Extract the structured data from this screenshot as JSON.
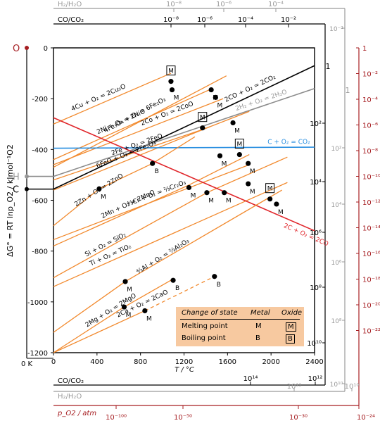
{
  "chart_data": {
    "type": "line",
    "xlabel": "T / °C",
    "ylabel": "ΔG° = RT lnp_O2 / kJmol⁻¹O2",
    "xlim": [
      0,
      2400
    ],
    "ylim": [
      -1200,
      0
    ],
    "x_ticks": [
      0,
      400,
      800,
      1200,
      1600,
      2000,
      2400
    ],
    "y_ticks": [
      0,
      -200,
      -400,
      -600,
      -800,
      -1000,
      -1200
    ],
    "x_zero_label": "0 K",
    "left_scale_labels": {
      "O": "O",
      "H": "H",
      "C": "C"
    },
    "left_scale_y": {
      "O": 0,
      "H": -506,
      "C": -556
    },
    "top_h2_label": "H₂/H₂O",
    "top_h2_ticks": [
      "10⁻⁸",
      "10⁻⁶",
      "10⁻⁴"
    ],
    "top_co_label": "CO/CO₂",
    "top_co_ticks": [
      "10⁻⁸",
      "10⁻⁶",
      "10⁻⁴",
      "10⁻²"
    ],
    "bottom_co_label": "CO/CO₂",
    "bottom_co_ticks": [
      "10¹⁴",
      "10¹²"
    ],
    "bottom_h2_label": "H₂/H₂O",
    "bottom_h2_ticks": [
      "10¹²",
      "10¹⁰"
    ],
    "bottom_po2_label": "p_O2 / atm",
    "bottom_po2_ticks": [
      "10⁻¹⁰⁰",
      "10⁻⁵⁰",
      "10⁻³⁰",
      "10⁻²⁴"
    ],
    "right_h2_ticks": [
      "10⁻²",
      "10²",
      "10⁴",
      "10⁶",
      "10⁸",
      "10¹⁰"
    ],
    "right_co_ticks": [
      "10²",
      "10⁴",
      "10⁶",
      "10⁸",
      "10¹⁰"
    ],
    "right_po2_ticks": [
      "1",
      "10⁻²",
      "10⁻⁴",
      "10⁻⁶",
      "10⁻⁸",
      "10⁻¹⁰",
      "10⁻¹²",
      "10⁻¹⁴",
      "10⁻¹⁶",
      "10⁻¹⁸",
      "10⁻²⁰",
      "10⁻²²"
    ],
    "right_po2_top": "1",
    "right_axis_corner_labels": {
      "one_a": "1",
      "one_b": "1"
    },
    "colors": {
      "metal": "#f28a2e",
      "carbon_co2": "#000000",
      "h2_h2o": "#8c8c8c",
      "c_co2": "#2a8fe0",
      "c_co": "#e0262b",
      "po2_axis": "#a61e22",
      "grey_axis": "#9a9a9a"
    },
    "series": [
      {
        "name": "4Fe₃O₄ + O₂ = 6Fe₂O₃",
        "x": [
          0,
          1590
        ],
        "y": [
          -470,
          -110
        ]
      },
      {
        "name": "4Cu + O₂ = 2Cu₂O",
        "x": [
          0,
          1080
        ],
        "y": [
          -300,
          -100
        ]
      },
      {
        "name": "2Ni + O₂ = 2NiO",
        "x": [
          0,
          1460
        ],
        "y": [
          -440,
          -160
        ]
      },
      {
        "name": "2Co + O₂ = 2CoO",
        "x": [
          0,
          1560
        ],
        "y": [
          -460,
          -200
        ]
      },
      {
        "name": "2CO + O₂ = 2CO₂",
        "x": [
          0,
          2400
        ],
        "y": [
          -556,
          -70
        ]
      },
      {
        "name": "2H₂ + O₂ = 2H₂O",
        "x": [
          0,
          2400
        ],
        "y": [
          -506,
          -160
        ]
      },
      {
        "name": "6FeO + O₂ = 2Fe₃O₄",
        "x": [
          0,
          1440
        ],
        "y": [
          -560,
          -310
        ]
      },
      {
        "name": "2Fe + O₂ = 2FeO",
        "x": [
          0,
          1380,
          1800
        ],
        "y": [
          -520,
          -320,
          -250
        ]
      },
      {
        "name": "C + O₂ = CO₂",
        "x": [
          0,
          2400
        ],
        "y": [
          -395,
          -391
        ]
      },
      {
        "name": "2Zn + O₂ = 2ZnO",
        "x": [
          0,
          420,
          910,
          1300
        ],
        "y": [
          -700,
          -555,
          -455,
          -350
        ]
      },
      {
        "name": "⁴⁄₃Cr + O₂ = ²⁄₃Cr₂O₃",
        "x": [
          0,
          1800
        ],
        "y": [
          -755,
          -460
        ]
      },
      {
        "name": "2Mn + O₂ = 2MnO",
        "x": [
          0,
          1245,
          1800
        ],
        "y": [
          -780,
          -540,
          -420
        ]
      },
      {
        "name": "Si + O₂ = SiO₂",
        "x": [
          0,
          1410,
          2150
        ],
        "y": [
          -905,
          -570,
          -430
        ]
      },
      {
        "name": "Ti + O₂ = TiO₂",
        "x": [
          0,
          2150
        ],
        "y": [
          -940,
          -530
        ]
      },
      {
        "name": "2C + O₂ = 2CO",
        "x": [
          0,
          2400
        ],
        "y": [
          -275,
          -720
        ]
      },
      {
        "name": "⁴⁄₃Al + O₂ = ²⁄₃Al₂O₃",
        "x": [
          0,
          660,
          2100
        ],
        "y": [
          -1120,
          -920,
          -560
        ]
      },
      {
        "name": "2Ca + O₂ = 2CaO",
        "x": [
          0,
          840,
          1480
        ],
        "y": [
          -1200,
          -1035,
          -900
        ]
      },
      {
        "name": "2Mg + O₂ = 2MgO",
        "x": [
          0,
          650,
          1100
        ],
        "y": [
          -1200,
          -1020,
          -910
        ]
      }
    ],
    "transitions": [
      {
        "x": 1080,
        "y": -132,
        "type": "oxide_melting"
      },
      {
        "x": 1090,
        "y": -165,
        "type": "metal_melting"
      },
      {
        "x": 1450,
        "y": -165,
        "type": "metal_melting"
      },
      {
        "x": 1490,
        "y": -195,
        "type": "metal_melting"
      },
      {
        "x": 1370,
        "y": -315,
        "type": "oxide_melting"
      },
      {
        "x": 1650,
        "y": -295,
        "type": "metal_melting"
      },
      {
        "x": 1530,
        "y": -425,
        "type": "metal_melting"
      },
      {
        "x": 1710,
        "y": -420,
        "type": "oxide_melting"
      },
      {
        "x": 1790,
        "y": -455,
        "type": "metal_melting"
      },
      {
        "x": 910,
        "y": -455,
        "type": "metal_boiling"
      },
      {
        "x": 420,
        "y": -555,
        "type": "metal_melting"
      },
      {
        "x": 1245,
        "y": -550,
        "type": "metal_melting"
      },
      {
        "x": 1410,
        "y": -570,
        "type": "metal_melting"
      },
      {
        "x": 1790,
        "y": -535,
        "type": "metal_melting"
      },
      {
        "x": 1570,
        "y": -570,
        "type": "metal_melting"
      },
      {
        "x": 1990,
        "y": -595,
        "type": "oxide_melting"
      },
      {
        "x": 2050,
        "y": -615,
        "type": "metal_melting"
      },
      {
        "x": 660,
        "y": -920,
        "type": "metal_melting"
      },
      {
        "x": 1100,
        "y": -915,
        "type": "metal_boiling"
      },
      {
        "x": 650,
        "y": -1020,
        "type": "metal_melting"
      },
      {
        "x": 840,
        "y": -1035,
        "type": "metal_melting"
      },
      {
        "x": 1480,
        "y": -900,
        "type": "metal_boiling"
      }
    ],
    "symbol_letters": {
      "M": "M",
      "B": "B"
    },
    "legend": {
      "header": [
        "Change of state",
        "Metal",
        "Oxide"
      ],
      "rows": [
        {
          "label": "Melting point",
          "metal": "M",
          "oxide": "M"
        },
        {
          "label": "Boiling point",
          "metal": "B",
          "oxide": "B"
        }
      ]
    }
  }
}
